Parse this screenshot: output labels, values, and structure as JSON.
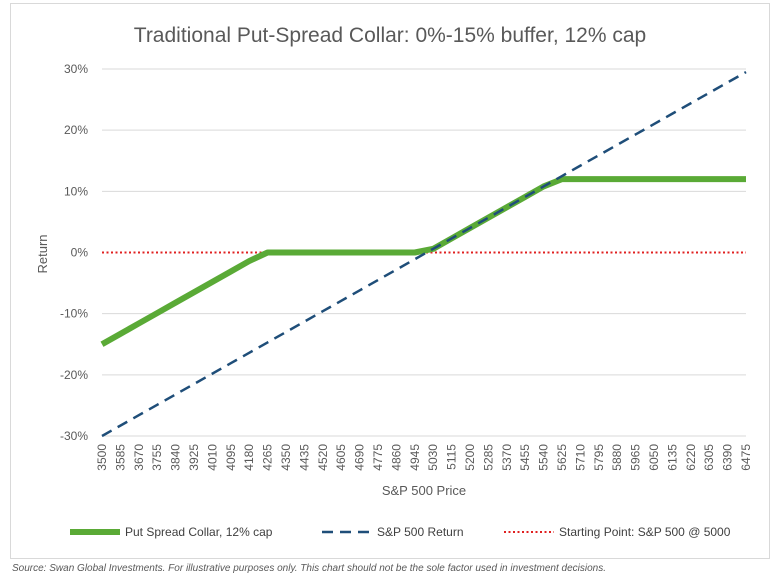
{
  "chart_data": {
    "type": "line",
    "title": "Traditional Put-Spread Collar: 0%-15% buffer, 12% cap",
    "xlabel": "S&P 500 Price",
    "ylabel": "Return",
    "ylim": [
      -30,
      30
    ],
    "yticks": [
      "30%",
      "20%",
      "10%",
      "0%",
      "-10%",
      "-20%",
      "-30%"
    ],
    "ytick_values": [
      30,
      20,
      10,
      0,
      -10,
      -20,
      -30
    ],
    "x": [
      3500,
      3585,
      3670,
      3755,
      3840,
      3925,
      4010,
      4095,
      4180,
      4265,
      4350,
      4435,
      4520,
      4605,
      4690,
      4775,
      4860,
      4945,
      5030,
      5115,
      5200,
      5285,
      5370,
      5455,
      5540,
      5625,
      5710,
      5795,
      5880,
      5965,
      6050,
      6135,
      6220,
      6305,
      6390,
      6475
    ],
    "x_labels": [
      "3500",
      "3585",
      "3670",
      "3755",
      "3840",
      "3925",
      "4010",
      "4095",
      "4180",
      "4265",
      "4350",
      "4435",
      "4520",
      "4605",
      "4690",
      "4775",
      "4860",
      "4945",
      "5030",
      "5115",
      "5200",
      "5285",
      "5370",
      "5455",
      "5540",
      "5625",
      "5710",
      "5795",
      "5880",
      "5965",
      "6050",
      "6135",
      "6220",
      "6305",
      "6390",
      "6475"
    ],
    "series": [
      {
        "name": "Put Spread Collar, 12% cap",
        "color": "#5aaa36",
        "style": "solid",
        "values": [
          -15,
          -13.3,
          -11.6,
          -9.9,
          -8.2,
          -6.5,
          -4.8,
          -3.1,
          -1.4,
          0,
          0,
          0,
          0,
          0,
          0,
          0,
          0,
          0,
          0.6,
          2.3,
          4.0,
          5.7,
          7.4,
          9.1,
          10.8,
          12,
          12,
          12,
          12,
          12,
          12,
          12,
          12,
          12,
          12,
          12
        ]
      },
      {
        "name": "S&P 500 Return",
        "color": "#1f4e79",
        "style": "dashed",
        "values": [
          -30,
          -28.3,
          -26.6,
          -24.9,
          -23.2,
          -21.5,
          -19.8,
          -18.1,
          -16.4,
          -14.7,
          -13.0,
          -11.3,
          -9.6,
          -7.9,
          -6.2,
          -4.5,
          -2.8,
          -1.1,
          0.6,
          2.3,
          4.0,
          5.7,
          7.4,
          9.1,
          10.8,
          12.5,
          14.2,
          15.9,
          17.6,
          19.3,
          21.0,
          22.7,
          24.4,
          26.1,
          27.8,
          29.5
        ]
      },
      {
        "name": "Starting Point: S&P 500 @ 5000",
        "color": "#e02020",
        "style": "dotted",
        "values": [
          0,
          0,
          0,
          0,
          0,
          0,
          0,
          0,
          0,
          0,
          0,
          0,
          0,
          0,
          0,
          0,
          0,
          0,
          0,
          0,
          0,
          0,
          0,
          0,
          0,
          0,
          0,
          0,
          0,
          0,
          0,
          0,
          0,
          0,
          0,
          0
        ]
      }
    ],
    "grid": true,
    "legend_position": "bottom"
  },
  "source_note": "Source: Swan Global Investments. For illustrative purposes only. This chart should not be the sole factor used in investment decisions."
}
